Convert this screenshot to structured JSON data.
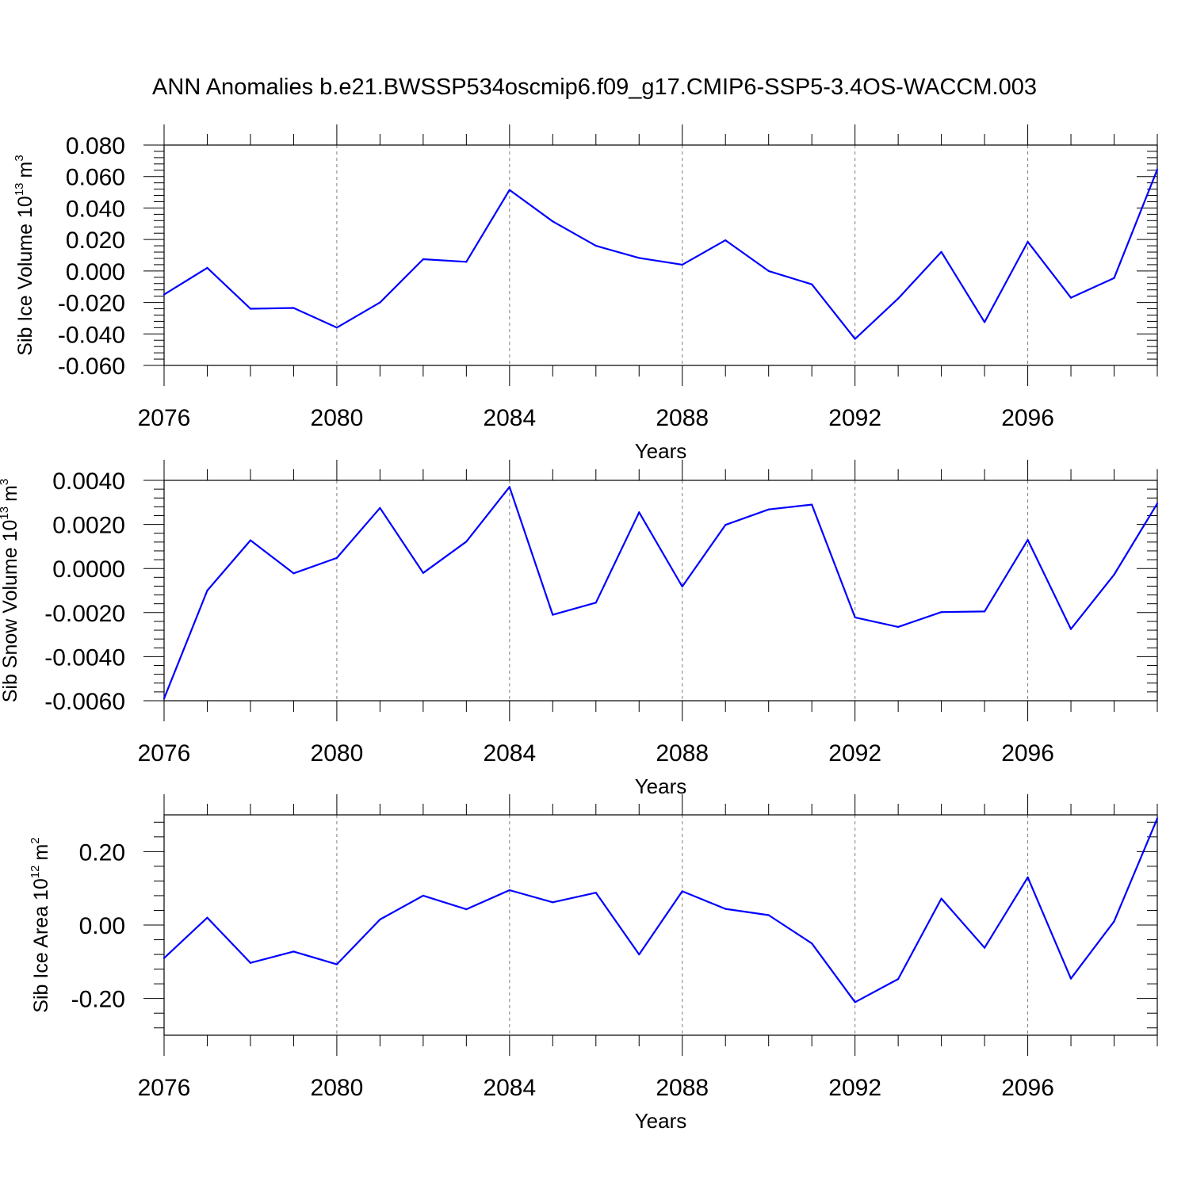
{
  "title": "ANN Anomalies b.e21.BWSSP534oscmip6.f09_g17.CMIP6-SSP5-3.4OS-WACCM.003",
  "colors": {
    "line": "#0000ff",
    "axis": "#000000",
    "grid": "#808080"
  },
  "chart_data": [
    {
      "type": "line",
      "name": "sib-ice-volume",
      "ylabel_main": "Sib Ice Volume 10",
      "ylabel_exp": "13",
      "ylabel_unit": "m",
      "ylabel_unit_exp": "3",
      "xlabel": "Years",
      "xlim": [
        2076,
        2099
      ],
      "ylim": [
        -0.06,
        0.08
      ],
      "xticks": [
        2076,
        2080,
        2084,
        2088,
        2092,
        2096
      ],
      "xtick_labels": [
        "2076",
        "2080",
        "2084",
        "2088",
        "2092",
        "2096"
      ],
      "yticks": [
        -0.06,
        -0.04,
        -0.02,
        0.0,
        0.02,
        0.04,
        0.06,
        0.08
      ],
      "ytick_labels": [
        "-0.060",
        "-0.040",
        "-0.020",
        "0.000",
        "0.020",
        "0.040",
        "0.060",
        "0.080"
      ],
      "grid_x": [
        2080,
        2084,
        2088,
        2092,
        2096
      ],
      "x": [
        2076,
        2077,
        2078,
        2079,
        2080,
        2081,
        2082,
        2083,
        2084,
        2085,
        2086,
        2087,
        2088,
        2089,
        2090,
        2091,
        2092,
        2093,
        2094,
        2095,
        2096,
        2097,
        2098,
        2099
      ],
      "y": [
        -0.015,
        0.002,
        -0.024,
        -0.0235,
        -0.036,
        -0.02,
        0.0075,
        0.0058,
        0.0515,
        0.0315,
        0.016,
        0.0083,
        0.004,
        0.0195,
        0.0,
        -0.0085,
        -0.0432,
        -0.0175,
        0.0121,
        -0.0325,
        0.0185,
        -0.017,
        -0.0045,
        0.0645
      ]
    },
    {
      "type": "line",
      "name": "sib-snow-volume",
      "ylabel_main": "Sib Snow Volume 10",
      "ylabel_exp": "13",
      "ylabel_unit": "m",
      "ylabel_unit_exp": "3",
      "xlabel": "Years",
      "xlim": [
        2076,
        2099
      ],
      "ylim": [
        -0.006,
        0.004
      ],
      "xticks": [
        2076,
        2080,
        2084,
        2088,
        2092,
        2096
      ],
      "xtick_labels": [
        "2076",
        "2080",
        "2084",
        "2088",
        "2092",
        "2096"
      ],
      "yticks": [
        -0.006,
        -0.004,
        -0.002,
        0.0,
        0.002,
        0.004
      ],
      "ytick_labels": [
        "-0.0060",
        "-0.0040",
        "-0.0020",
        "0.0000",
        "0.0020",
        "0.0040"
      ],
      "grid_x": [
        2080,
        2084,
        2088,
        2092,
        2096
      ],
      "x": [
        2076,
        2077,
        2078,
        2079,
        2080,
        2081,
        2082,
        2083,
        2084,
        2085,
        2086,
        2087,
        2088,
        2089,
        2090,
        2091,
        2092,
        2093,
        2094,
        2095,
        2096,
        2097,
        2098,
        2099
      ],
      "y": [
        -0.0059,
        -0.001,
        0.00128,
        -0.00022,
        0.00048,
        0.00275,
        -0.0002,
        0.00122,
        0.0037,
        -0.0021,
        -0.00155,
        0.00255,
        -0.00082,
        0.00198,
        0.00268,
        0.0029,
        -0.00222,
        -0.00265,
        -0.00198,
        -0.00195,
        0.0013,
        -0.00275,
        -0.00028,
        0.00295
      ]
    },
    {
      "type": "line",
      "name": "sib-ice-area",
      "ylabel_main": "Sib Ice Area 10",
      "ylabel_exp": "12",
      "ylabel_unit": "m",
      "ylabel_unit_exp": "2",
      "xlabel": "Years",
      "xlim": [
        2076,
        2099
      ],
      "ylim": [
        -0.3,
        0.3
      ],
      "xticks": [
        2076,
        2080,
        2084,
        2088,
        2092,
        2096
      ],
      "xtick_labels": [
        "2076",
        "2080",
        "2084",
        "2088",
        "2092",
        "2096"
      ],
      "yticks": [
        -0.2,
        0.0,
        0.2
      ],
      "ytick_labels": [
        "-0.20",
        "0.00",
        "0.20"
      ],
      "grid_x": [
        2080,
        2084,
        2088,
        2092,
        2096
      ],
      "x": [
        2076,
        2077,
        2078,
        2079,
        2080,
        2081,
        2082,
        2083,
        2084,
        2085,
        2086,
        2087,
        2088,
        2089,
        2090,
        2091,
        2092,
        2093,
        2094,
        2095,
        2096,
        2097,
        2098,
        2099
      ],
      "y": [
        -0.09,
        0.02,
        -0.103,
        -0.072,
        -0.107,
        0.015,
        0.08,
        0.043,
        0.095,
        0.062,
        0.088,
        -0.08,
        0.092,
        0.044,
        0.027,
        -0.05,
        -0.21,
        -0.147,
        0.072,
        -0.062,
        0.13,
        -0.146,
        0.01,
        0.29
      ]
    }
  ]
}
